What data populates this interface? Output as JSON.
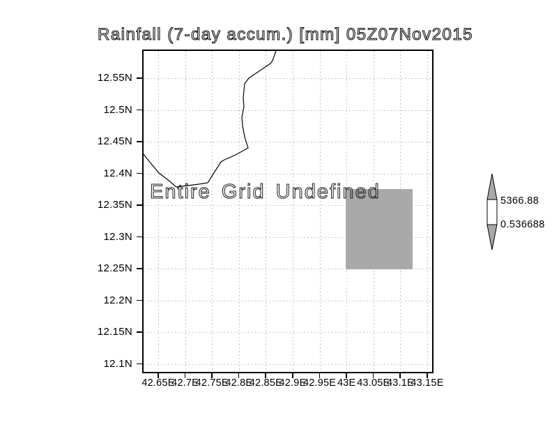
{
  "title": "Rainfall (7-day accum.) [mm] 05Z07Nov2015",
  "plot": {
    "annotation": "Entire Grid Undefined",
    "lat_ticks": [
      "12.55N",
      "12.5N",
      "12.45N",
      "12.4N",
      "12.35N",
      "12.3N",
      "12.25N",
      "12.2N",
      "12.15N",
      "12.1N"
    ],
    "lon_ticks": [
      "42.65E",
      "42.7E",
      "42.75E",
      "42.8E",
      "42.85E",
      "42.9E",
      "42.95E",
      "43E",
      "43.05E",
      "43.1E",
      "43.15E"
    ]
  },
  "colorbar": {
    "max_label": "5366.88",
    "min_label": "0.536688"
  },
  "colors": {
    "undefined_fill": "#a9a9a9",
    "colorbar_arrow_fill": "#a9a9a9",
    "colorbar_box_fill": "#ffffff",
    "gridline": "#b2b2b2",
    "frame": "#000000"
  },
  "chart_data": {
    "type": "heatmap",
    "title": "Rainfall (7-day accum.) [mm] 05Z07Nov2015",
    "xlabel": "",
    "ylabel": "",
    "x_tick_labels": [
      "42.65E",
      "42.7E",
      "42.75E",
      "42.8E",
      "42.85E",
      "42.9E",
      "42.95E",
      "43E",
      "43.05E",
      "43.1E",
      "43.15E"
    ],
    "y_tick_labels": [
      "12.1N",
      "12.15N",
      "12.2N",
      "12.25N",
      "12.3N",
      "12.35N",
      "12.4N",
      "12.45N",
      "12.5N",
      "12.55N"
    ],
    "x_range_deg_east": [
      42.62,
      43.16
    ],
    "y_range_deg_north": [
      12.085,
      12.59
    ],
    "grid": "dotted gridlines every 0.05 degree",
    "annotation": "Entire Grid Undefined",
    "data_status": "no rainfall values plotted; entire grid undefined",
    "undefined_marker_cell": {
      "lon_deg_east": [
        43.0,
        43.12
      ],
      "lat_deg_north": [
        12.25,
        12.375
      ],
      "fill": "#a9a9a9"
    },
    "colorbar": {
      "orientation": "vertical",
      "max": 5366.88,
      "min": 0.536688,
      "labels": [
        "5366.88",
        "0.536688"
      ],
      "position": "right"
    },
    "features": [
      "coastline segment crossing upper-left quadrant of map"
    ]
  }
}
